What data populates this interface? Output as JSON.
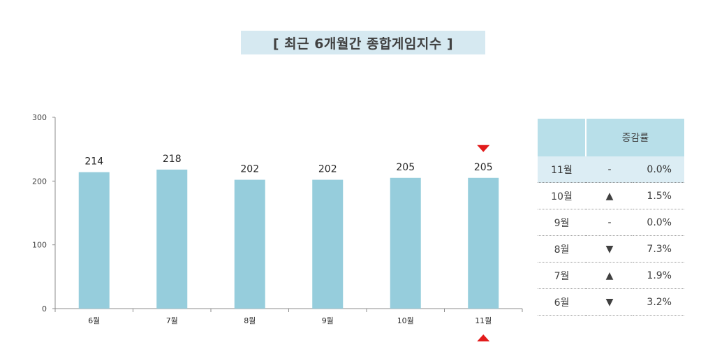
{
  "title": "[ 최근 6개월간 종합게임지수 ]",
  "chart_data": {
    "type": "bar",
    "categories": [
      "6월",
      "7월",
      "8월",
      "9월",
      "10월",
      "11월"
    ],
    "values": [
      214,
      218,
      202,
      202,
      205,
      205
    ],
    "ylim": [
      0,
      300
    ],
    "yticks": [
      0,
      100,
      200,
      300
    ],
    "bar_color": "#96cddc",
    "marker_color": "#e21b1b"
  },
  "table": {
    "header_month": "",
    "header_change": "증감률",
    "rows": [
      {
        "month": "11월",
        "dir": "-",
        "dir_type": "flat",
        "value": "0.0%"
      },
      {
        "month": "10월",
        "dir": "▲",
        "dir_type": "up",
        "value": "1.5%"
      },
      {
        "month": "9월",
        "dir": "-",
        "dir_type": "flat-blue",
        "value": "0.0%"
      },
      {
        "month": "8월",
        "dir": "▼",
        "dir_type": "down",
        "value": "7.3%"
      },
      {
        "month": "7월",
        "dir": "▲",
        "dir_type": "up",
        "value": "1.9%"
      },
      {
        "month": "6월",
        "dir": "▼",
        "dir_type": "down",
        "value": "3.2%"
      }
    ]
  }
}
